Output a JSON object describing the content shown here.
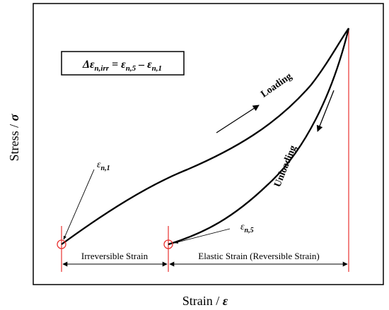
{
  "axes": {
    "ylabel": "Stress / ",
    "ylabel_symbol": "σ",
    "xlabel": "Strain / ",
    "xlabel_symbol": "ε"
  },
  "formula": {
    "lhs": "Δε",
    "lhs_sub": "n,irr",
    "eq": " = ε",
    "t1_sub": "n,5",
    "minus": " – ε",
    "t2_sub": "n,1"
  },
  "curve_labels": {
    "loading": "Loading",
    "unloading": "Unloading"
  },
  "points": {
    "p1_symbol": "ε",
    "p1_sub": "n,1",
    "p5_symbol": "ε",
    "p5_sub": "n,5"
  },
  "spans": {
    "irreversible": "Irreversible Strain",
    "elastic": "Elastic Strain (Reversible Strain)"
  },
  "colors": {
    "curve": "#000000",
    "marker": "#e8312f",
    "frame": "#000000"
  }
}
